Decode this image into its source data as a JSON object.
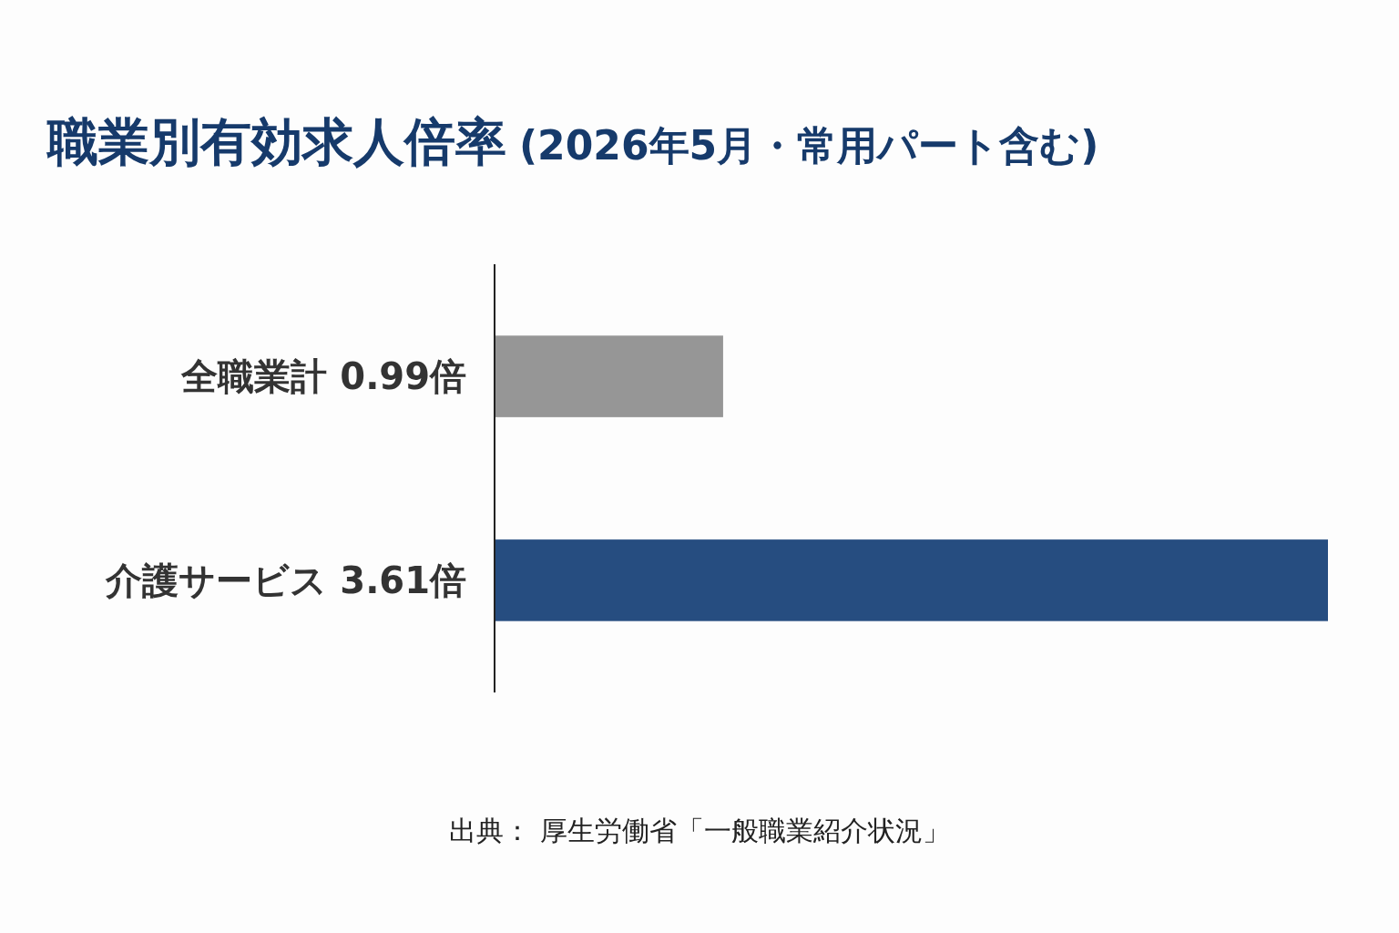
{
  "chart_data": {
    "type": "bar",
    "orientation": "horizontal",
    "title": "職業別有効求人倍率",
    "subtitle": "(2026年5月・常用パート含む)",
    "categories": [
      "全職業計",
      "介護サービス"
    ],
    "values": [
      0.99,
      3.61
    ],
    "colors": [
      "#969696",
      "#264d80"
    ],
    "value_labels": [
      "0.99倍",
      "3.61倍"
    ],
    "annotations": [
      "出典： 厚生労働省「一般職業紹介状況」"
    ]
  }
}
